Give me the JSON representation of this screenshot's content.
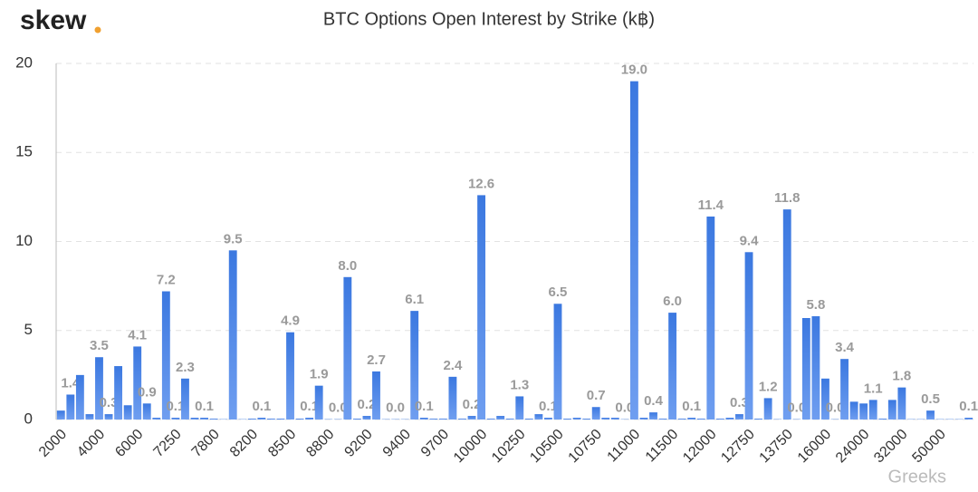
{
  "logo": "skew",
  "watermark": "Greeks",
  "chart_data": {
    "type": "bar",
    "title": "BTC Options Open Interest by Strike (k฿)",
    "categories": [
      "2000",
      null,
      null,
      null,
      "4000",
      null,
      null,
      null,
      "6000",
      null,
      null,
      null,
      "7250",
      null,
      null,
      null,
      "7800",
      null,
      null,
      null,
      "8200",
      null,
      null,
      null,
      "8500",
      null,
      null,
      null,
      "8800",
      null,
      null,
      null,
      "9200",
      null,
      null,
      null,
      "9400",
      null,
      null,
      null,
      "9700",
      null,
      null,
      null,
      "10000",
      null,
      null,
      null,
      "10250",
      null,
      null,
      null,
      "10500",
      null,
      null,
      null,
      "10750",
      null,
      null,
      null,
      "11000",
      null,
      null,
      null,
      "11500",
      null,
      null,
      null,
      "12000",
      null,
      null,
      null,
      "12750",
      null,
      null,
      null,
      "13750",
      null,
      null,
      null,
      "16000",
      null,
      null,
      null,
      "24000",
      null,
      null,
      null,
      "32000",
      null,
      null,
      null,
      "50000",
      null,
      null,
      null
    ],
    "values": [
      0.5,
      1.4,
      2.5,
      0.3,
      3.5,
      0.3,
      3.0,
      0.8,
      4.1,
      0.9,
      0.1,
      7.2,
      0.1,
      2.3,
      0.1,
      0.1,
      0.05,
      0.02,
      9.5,
      0.02,
      0.05,
      0.1,
      0.05,
      0.05,
      4.9,
      0.05,
      0.1,
      1.9,
      0.02,
      0.02,
      8.0,
      0.05,
      0.2,
      2.7,
      0.02,
      0.02,
      0.02,
      6.1,
      0.1,
      0.05,
      0.05,
      2.4,
      0.05,
      0.2,
      12.6,
      0.05,
      0.2,
      0.05,
      1.3,
      0.05,
      0.3,
      0.1,
      6.5,
      0.05,
      0.1,
      0.05,
      0.7,
      0.1,
      0.1,
      0.02,
      19.0,
      0.1,
      0.4,
      0.05,
      6.0,
      0.05,
      0.1,
      0.05,
      11.4,
      0.05,
      0.1,
      0.3,
      9.4,
      0.05,
      1.2,
      0.02,
      11.8,
      0.02,
      5.7,
      5.8,
      2.3,
      0.02,
      3.4,
      1.0,
      0.9,
      1.1,
      0.05,
      1.1,
      1.8,
      0.02,
      0.02,
      0.5,
      0.02,
      0.02,
      0.02,
      0.1
    ],
    "value_labels": [
      null,
      "1.4",
      null,
      null,
      "3.5",
      "0.3",
      null,
      null,
      "4.1",
      "0.9",
      null,
      "7.2",
      "0.1",
      "2.3",
      null,
      "0.1",
      null,
      null,
      "9.5",
      null,
      null,
      "0.1",
      null,
      null,
      "4.9",
      null,
      "0.1",
      "1.9",
      null,
      "0.0",
      "8.0",
      null,
      "0.2",
      "2.7",
      null,
      "0.0",
      null,
      "6.1",
      "0.1",
      null,
      null,
      "2.4",
      null,
      "0.2",
      "12.6",
      null,
      null,
      null,
      "1.3",
      null,
      null,
      "0.1",
      "6.5",
      null,
      null,
      null,
      "0.7",
      null,
      null,
      "0.0",
      "19.0",
      null,
      "0.4",
      null,
      "6.0",
      null,
      "0.1",
      null,
      "11.4",
      null,
      null,
      "0.3",
      "9.4",
      null,
      "1.2",
      null,
      "11.8",
      "0.0",
      null,
      "5.8",
      null,
      "0.0",
      "3.4",
      null,
      null,
      "1.1",
      null,
      null,
      "1.8",
      null,
      null,
      "0.5",
      null,
      null,
      null,
      "0.1"
    ],
    "color": "#4a86e8",
    "ylim": [
      0,
      20
    ],
    "yticks": [
      0,
      5,
      10,
      15,
      20
    ],
    "grid": true
  }
}
